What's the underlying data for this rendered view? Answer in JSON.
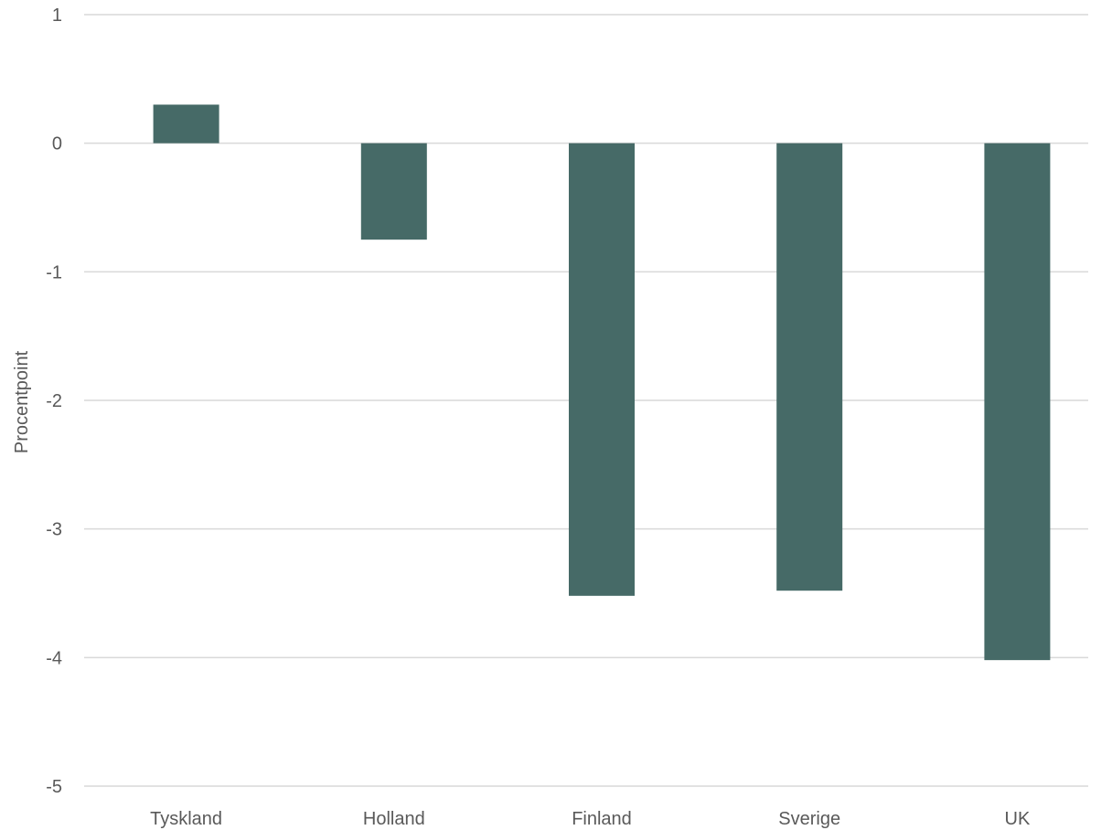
{
  "chart_data": {
    "type": "bar",
    "categories": [
      "Tyskland",
      "Holland",
      "Finland",
      "Sverige",
      "UK"
    ],
    "series": [
      {
        "values": [
          0.3,
          -0.75,
          -3.52,
          -3.48,
          -4.02
        ]
      }
    ],
    "title": "",
    "xlabel": "",
    "ylabel": "Procentpoint",
    "ylim": [
      -5,
      1
    ],
    "yticks": [
      1,
      0,
      -1,
      -2,
      -3,
      -4,
      -5
    ],
    "grid": true,
    "legend": "none",
    "colors": {
      "bar": "#466a67",
      "grid": "#d9d9d9",
      "text": "#595959"
    }
  }
}
